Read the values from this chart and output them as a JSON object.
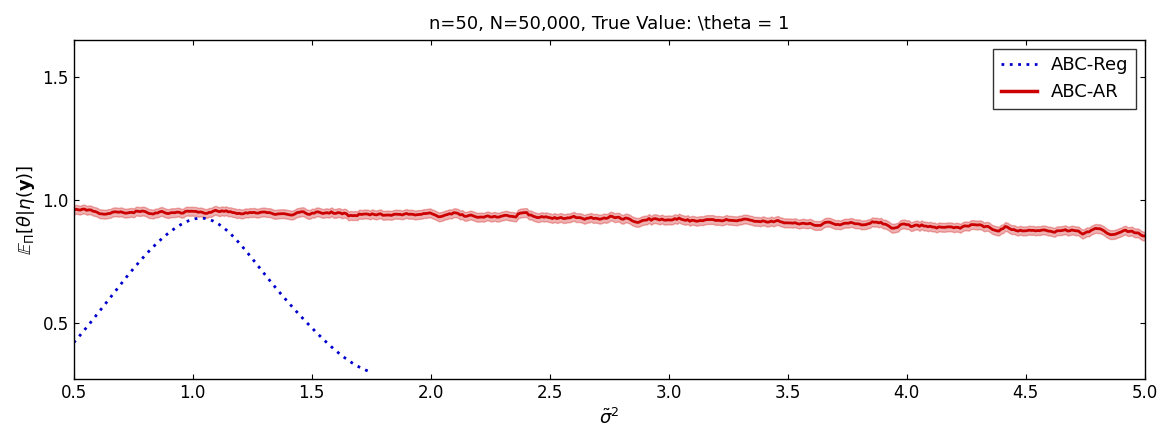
{
  "title": "n=50, N=50,000, True Value: \\theta = 1",
  "xlabel": "$\\tilde{\\sigma}^2$",
  "ylabel": "$\\mathbb{E}_{\\Pi}[\\theta|\\eta(\\mathbf{y})]$",
  "xlim": [
    0.5,
    5.0
  ],
  "ylim": [
    0.27,
    1.65
  ],
  "yticks": [
    0.5,
    1.0,
    1.5
  ],
  "xticks": [
    0.5,
    1.0,
    1.5,
    2.0,
    2.5,
    3.0,
    3.5,
    4.0,
    4.5,
    5.0
  ],
  "abc_ar_color": "#cc0000",
  "abc_reg_color": "#0000cc",
  "background_color": "#ffffff",
  "legend_labels": [
    "ABC-Reg",
    "ABC-AR"
  ],
  "title_fontsize": 13,
  "axis_fontsize": 13,
  "tick_fontsize": 12
}
